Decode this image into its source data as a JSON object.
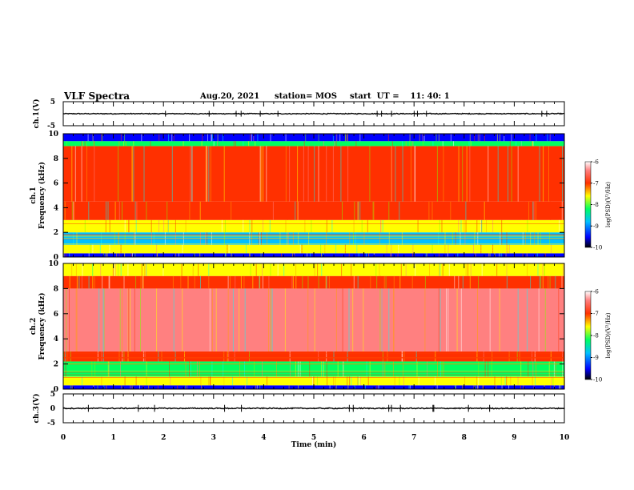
{
  "header": {
    "title": "VLF Spectra",
    "date": "Aug.20, 2021",
    "station": "station= MOS",
    "start": "start  UT =    11: 40: 1"
  },
  "colors": {
    "colormap": [
      "#000000",
      "#00008b",
      "#0000ff",
      "#00a0ff",
      "#00ffff",
      "#00ff80",
      "#80ff00",
      "#ffff00",
      "#ffa000",
      "#ff2000",
      "#ffffff"
    ]
  },
  "chart_data": [
    {
      "type": "line",
      "ylabel": "ch.1(V)",
      "ylim": [
        -5,
        5
      ],
      "yticks": [
        "5",
        "-5"
      ],
      "description_value": 0,
      "x": [
        0,
        10
      ],
      "values": [
        0,
        0
      ]
    },
    {
      "type": "heatmap",
      "ylabel": "ch.1\nFrequency (kHz)",
      "ylim": [
        0,
        10
      ],
      "yticks": [
        "0",
        "2",
        "4",
        "6",
        "8",
        "10"
      ],
      "xlim": [
        0,
        10
      ],
      "colorbar": {
        "label": "log(PSD)(V²/Hz)",
        "range": [
          -10,
          -6
        ],
        "ticks": [
          "-6",
          "-7",
          "-8",
          "-9",
          "-10"
        ]
      },
      "bands_khz": [
        {
          "from": 0,
          "to": 0.3,
          "log_psd": -10
        },
        {
          "from": 0.3,
          "to": 1.0,
          "log_psd": -8
        },
        {
          "from": 1.0,
          "to": 2.0,
          "log_psd": -9.3
        },
        {
          "from": 2.0,
          "to": 3.0,
          "log_psd": -8.2
        },
        {
          "from": 3.0,
          "to": 4.5,
          "log_psd": -7.5
        },
        {
          "from": 4.5,
          "to": 9.0,
          "log_psd": -7
        },
        {
          "from": 9.0,
          "to": 9.4,
          "log_psd": -8.3
        },
        {
          "from": 9.4,
          "to": 10,
          "log_psd": -9.7
        }
      ]
    },
    {
      "type": "heatmap",
      "ylabel": "ch.2\nFrequency (kHz)",
      "ylim": [
        0,
        10
      ],
      "yticks": [
        "0",
        "2",
        "4",
        "6",
        "8",
        "10"
      ],
      "xlim": [
        0,
        10
      ],
      "colorbar": {
        "label": "log(PSD)(V²/Hz)",
        "range": [
          -10,
          -6
        ],
        "ticks": [
          "-6",
          "-7",
          "-8",
          "-9",
          "-10"
        ]
      },
      "bands_khz": [
        {
          "from": 0,
          "to": 0.3,
          "log_psd": -9.6
        },
        {
          "from": 0.3,
          "to": 1.0,
          "log_psd": -8
        },
        {
          "from": 1.0,
          "to": 2.2,
          "log_psd": -8.4
        },
        {
          "from": 2.2,
          "to": 3.0,
          "log_psd": -7.6
        },
        {
          "from": 3.0,
          "to": 8.0,
          "log_psd": -6.6
        },
        {
          "from": 8.0,
          "to": 9.0,
          "log_psd": -7.2
        },
        {
          "from": 9.0,
          "to": 10,
          "log_psd": -8.1
        }
      ]
    },
    {
      "type": "line",
      "ylabel": "ch.3(V)",
      "ylim": [
        -5,
        5
      ],
      "yticks": [
        "5",
        "0",
        "-5"
      ],
      "x": [
        0,
        10
      ],
      "values": [
        0,
        0
      ]
    }
  ],
  "xaxis": {
    "label": "Time (min)",
    "ticks": [
      "0",
      "1",
      "2",
      "3",
      "4",
      "5",
      "6",
      "7",
      "8",
      "9",
      "10"
    ]
  }
}
